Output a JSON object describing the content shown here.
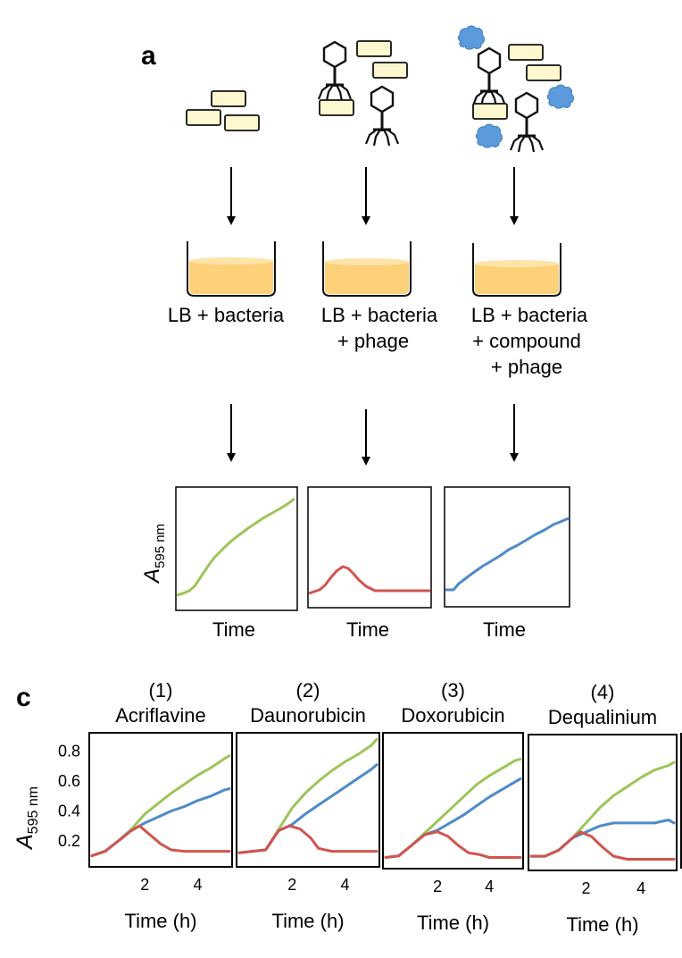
{
  "panel_a": {
    "label": "a",
    "conditions": [
      {
        "label_lines": [
          "LB + bacteria"
        ],
        "curve_series": "control"
      },
      {
        "label_lines": [
          "LB + bacteria",
          "+ phage"
        ],
        "curve_series": "phage"
      },
      {
        "label_lines": [
          "LB + bacteria",
          "+ compound",
          "+ phage"
        ],
        "curve_series": "compound_phage"
      }
    ],
    "ylabel_main": "A",
    "ylabel_sub": "595 nm",
    "xlabel": "Time"
  },
  "panel_c": {
    "label": "c",
    "ylabel_main": "A",
    "ylabel_sub": "595 nm",
    "xlabel": "Time (h)"
  },
  "colors": {
    "control": "#9dc55a",
    "phage": "#d0554f",
    "compound_phage": "#4f8ac9",
    "well_fill": "#fdd17a",
    "bacteria_fill": "#fdf8cf",
    "compound_blob": "#5b9bdb"
  },
  "chart_data": [
    {
      "type": "line",
      "title": "Acriflavine",
      "subtitle": "(1)",
      "xlabel": "Time (h)",
      "ylabel": "A595 nm",
      "xlim": [
        0,
        5.2
      ],
      "ylim": [
        0.05,
        0.9
      ],
      "xticks": [
        2,
        4
      ],
      "yticks": [
        0.2,
        0.4,
        0.6,
        0.8
      ],
      "series": [
        {
          "key": "control",
          "x": [
            0,
            0.5,
            1,
            1.5,
            2,
            2.5,
            3,
            3.5,
            4,
            4.5,
            5,
            5.2
          ],
          "y": [
            0.1,
            0.13,
            0.2,
            0.28,
            0.38,
            0.45,
            0.52,
            0.58,
            0.64,
            0.69,
            0.75,
            0.77
          ]
        },
        {
          "key": "compound_phage",
          "x": [
            0,
            0.5,
            1,
            1.5,
            2,
            2.5,
            3,
            3.5,
            4,
            4.5,
            5,
            5.2
          ],
          "y": [
            0.1,
            0.13,
            0.2,
            0.27,
            0.32,
            0.36,
            0.4,
            0.43,
            0.47,
            0.5,
            0.54,
            0.55
          ]
        },
        {
          "key": "phage",
          "x": [
            0,
            0.5,
            1,
            1.5,
            1.8,
            2.2,
            2.6,
            3,
            3.5,
            4,
            4.5,
            5,
            5.2
          ],
          "y": [
            0.1,
            0.13,
            0.2,
            0.27,
            0.3,
            0.24,
            0.18,
            0.14,
            0.13,
            0.13,
            0.13,
            0.13,
            0.13
          ]
        }
      ]
    },
    {
      "type": "line",
      "title": "Daunorubicin",
      "subtitle": "(2)",
      "xlabel": "Time (h)",
      "ylabel": "",
      "xlim": [
        0,
        5.2
      ],
      "ylim": [
        0.05,
        0.9
      ],
      "xticks": [
        2,
        4
      ],
      "yticks": [],
      "series": [
        {
          "key": "control",
          "x": [
            0,
            0.5,
            1,
            1.5,
            2,
            2.5,
            3,
            3.5,
            4,
            4.5,
            5,
            5.2
          ],
          "y": [
            0.12,
            0.13,
            0.14,
            0.28,
            0.42,
            0.52,
            0.6,
            0.67,
            0.73,
            0.78,
            0.84,
            0.88
          ]
        },
        {
          "key": "compound_phage",
          "x": [
            0,
            0.5,
            1,
            1.5,
            2,
            2.5,
            3,
            3.5,
            4,
            4.5,
            5,
            5.2
          ],
          "y": [
            0.12,
            0.13,
            0.14,
            0.27,
            0.31,
            0.38,
            0.44,
            0.5,
            0.56,
            0.62,
            0.68,
            0.71
          ]
        },
        {
          "key": "phage",
          "x": [
            0,
            0.5,
            1,
            1.5,
            1.9,
            2.3,
            2.7,
            3,
            3.5,
            4,
            4.5,
            5,
            5.2
          ],
          "y": [
            0.12,
            0.13,
            0.14,
            0.27,
            0.3,
            0.28,
            0.22,
            0.15,
            0.13,
            0.13,
            0.13,
            0.13,
            0.13
          ]
        }
      ]
    },
    {
      "type": "line",
      "title": "Doxorubicin",
      "subtitle": "(3)",
      "xlabel": "Time (h)",
      "ylabel": "",
      "xlim": [
        0,
        5.2
      ],
      "ylim": [
        0.05,
        0.9
      ],
      "xticks": [
        2,
        4
      ],
      "yticks": [],
      "series": [
        {
          "key": "control",
          "x": [
            0,
            0.5,
            1,
            1.5,
            2,
            2.5,
            3,
            3.5,
            4,
            4.5,
            5,
            5.2
          ],
          "y": [
            0.1,
            0.11,
            0.18,
            0.26,
            0.34,
            0.42,
            0.5,
            0.58,
            0.64,
            0.69,
            0.74,
            0.75
          ]
        },
        {
          "key": "compound_phage",
          "x": [
            0,
            0.5,
            1,
            1.5,
            2,
            2.5,
            3,
            3.5,
            4,
            4.5,
            5,
            5.2
          ],
          "y": [
            0.1,
            0.11,
            0.18,
            0.25,
            0.28,
            0.33,
            0.38,
            0.44,
            0.5,
            0.55,
            0.6,
            0.62
          ]
        },
        {
          "key": "phage",
          "x": [
            0,
            0.5,
            1,
            1.5,
            2,
            2.4,
            2.8,
            3.2,
            3.6,
            4,
            4.5,
            5,
            5.2
          ],
          "y": [
            0.1,
            0.11,
            0.18,
            0.25,
            0.27,
            0.24,
            0.18,
            0.13,
            0.12,
            0.1,
            0.1,
            0.1,
            0.1
          ]
        }
      ]
    },
    {
      "type": "line",
      "title": "Dequalinium",
      "subtitle": "(4)",
      "xlabel": "Time (h)",
      "ylabel": "",
      "xlim": [
        0,
        5.2
      ],
      "ylim": [
        0.05,
        0.9
      ],
      "xticks": [
        2,
        4
      ],
      "yticks": [],
      "series": [
        {
          "key": "control",
          "x": [
            0,
            0.5,
            1,
            1.5,
            2,
            2.5,
            3,
            3.5,
            4,
            4.5,
            5,
            5.2
          ],
          "y": [
            0.12,
            0.12,
            0.16,
            0.24,
            0.34,
            0.44,
            0.52,
            0.58,
            0.64,
            0.69,
            0.72,
            0.74
          ]
        },
        {
          "key": "compound_phage",
          "x": [
            0,
            0.5,
            1,
            1.5,
            2,
            2.5,
            3,
            3.5,
            4,
            4.5,
            5,
            5.2
          ],
          "y": [
            0.12,
            0.12,
            0.16,
            0.24,
            0.28,
            0.32,
            0.34,
            0.34,
            0.34,
            0.34,
            0.36,
            0.34
          ]
        },
        {
          "key": "phage",
          "x": [
            0,
            0.5,
            1,
            1.5,
            1.8,
            2.2,
            2.6,
            3,
            3.5,
            4,
            4.5,
            5,
            5.2
          ],
          "y": [
            0.12,
            0.12,
            0.16,
            0.24,
            0.28,
            0.25,
            0.18,
            0.12,
            0.1,
            0.1,
            0.1,
            0.1,
            0.1
          ]
        }
      ]
    }
  ]
}
